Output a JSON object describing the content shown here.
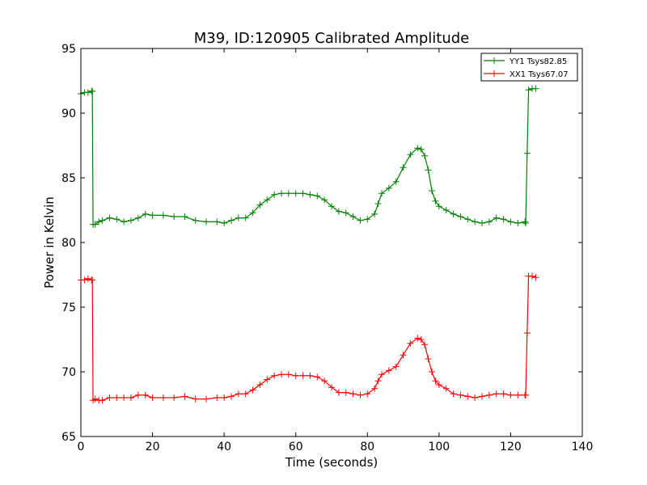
{
  "chart_data": {
    "type": "line",
    "title": "M39, ID:120905 Calibrated Amplitude",
    "xlabel": "Time (seconds)",
    "ylabel": "Power in Kelvin",
    "xlim": [
      0,
      140
    ],
    "ylim": [
      65,
      95
    ],
    "xticks": [
      0,
      20,
      40,
      60,
      80,
      100,
      120,
      140
    ],
    "yticks": [
      65,
      70,
      75,
      80,
      85,
      90,
      95
    ],
    "grid": false,
    "legend_position": "top-right",
    "marker": "+",
    "series": [
      {
        "name": "YY1 Tsys82.85",
        "color": "#008000",
        "points": [
          [
            0,
            91.5
          ],
          [
            1,
            91.6
          ],
          [
            2,
            91.6
          ],
          [
            3,
            91.7
          ],
          [
            3.2,
            91.7
          ],
          [
            3.4,
            81.4
          ],
          [
            4,
            81.4
          ],
          [
            5,
            81.6
          ],
          [
            6,
            81.7
          ],
          [
            8,
            81.9
          ],
          [
            10,
            81.8
          ],
          [
            12,
            81.6
          ],
          [
            14,
            81.7
          ],
          [
            16,
            81.9
          ],
          [
            18,
            82.2
          ],
          [
            20,
            82.1
          ],
          [
            23,
            82.1
          ],
          [
            26,
            82.0
          ],
          [
            29,
            82.0
          ],
          [
            32,
            81.7
          ],
          [
            35,
            81.6
          ],
          [
            38,
            81.6
          ],
          [
            40,
            81.5
          ],
          [
            42,
            81.7
          ],
          [
            44,
            81.9
          ],
          [
            46,
            81.9
          ],
          [
            48,
            82.3
          ],
          [
            50,
            82.9
          ],
          [
            52,
            83.3
          ],
          [
            54,
            83.7
          ],
          [
            56,
            83.8
          ],
          [
            58,
            83.8
          ],
          [
            60,
            83.8
          ],
          [
            62,
            83.8
          ],
          [
            64,
            83.7
          ],
          [
            66,
            83.6
          ],
          [
            68,
            83.3
          ],
          [
            70,
            82.8
          ],
          [
            72,
            82.4
          ],
          [
            74,
            82.3
          ],
          [
            76,
            82.0
          ],
          [
            78,
            81.7
          ],
          [
            80,
            81.8
          ],
          [
            82,
            82.2
          ],
          [
            83,
            83.0
          ],
          [
            84,
            83.8
          ],
          [
            86,
            84.2
          ],
          [
            88,
            84.7
          ],
          [
            90,
            85.8
          ],
          [
            92,
            86.8
          ],
          [
            94,
            87.3
          ],
          [
            95,
            87.2
          ],
          [
            96,
            86.7
          ],
          [
            97,
            85.6
          ],
          [
            98,
            84.0
          ],
          [
            99,
            83.2
          ],
          [
            100,
            82.8
          ],
          [
            102,
            82.5
          ],
          [
            104,
            82.2
          ],
          [
            106,
            82.0
          ],
          [
            108,
            81.8
          ],
          [
            110,
            81.6
          ],
          [
            112,
            81.5
          ],
          [
            114,
            81.6
          ],
          [
            116,
            81.9
          ],
          [
            118,
            81.8
          ],
          [
            120,
            81.6
          ],
          [
            122,
            81.5
          ],
          [
            124,
            81.6
          ],
          [
            124.2,
            81.5
          ],
          [
            124.6,
            86.9
          ],
          [
            125,
            91.8
          ],
          [
            126,
            91.9
          ],
          [
            127,
            91.9
          ]
        ]
      },
      {
        "name": "XX1 Tsys67.07",
        "color": "#ff0000",
        "points": [
          [
            0,
            77.1
          ],
          [
            1,
            77.1
          ],
          [
            2,
            77.2
          ],
          [
            3,
            77.1
          ],
          [
            3.2,
            77.1
          ],
          [
            3.4,
            67.8
          ],
          [
            4,
            67.9
          ],
          [
            5,
            67.8
          ],
          [
            6,
            67.8
          ],
          [
            8,
            68.0
          ],
          [
            10,
            68.0
          ],
          [
            12,
            68.0
          ],
          [
            14,
            68.0
          ],
          [
            16,
            68.2
          ],
          [
            18,
            68.2
          ],
          [
            20,
            68.0
          ],
          [
            23,
            68.0
          ],
          [
            26,
            68.0
          ],
          [
            29,
            68.1
          ],
          [
            32,
            67.9
          ],
          [
            35,
            67.9
          ],
          [
            38,
            68.0
          ],
          [
            40,
            68.0
          ],
          [
            42,
            68.1
          ],
          [
            44,
            68.3
          ],
          [
            46,
            68.3
          ],
          [
            48,
            68.6
          ],
          [
            50,
            69.0
          ],
          [
            52,
            69.4
          ],
          [
            54,
            69.7
          ],
          [
            56,
            69.8
          ],
          [
            58,
            69.8
          ],
          [
            60,
            69.7
          ],
          [
            62,
            69.7
          ],
          [
            64,
            69.7
          ],
          [
            66,
            69.6
          ],
          [
            68,
            69.3
          ],
          [
            70,
            68.8
          ],
          [
            72,
            68.4
          ],
          [
            74,
            68.4
          ],
          [
            76,
            68.3
          ],
          [
            78,
            68.2
          ],
          [
            80,
            68.3
          ],
          [
            82,
            68.7
          ],
          [
            83,
            69.3
          ],
          [
            84,
            69.8
          ],
          [
            86,
            70.1
          ],
          [
            88,
            70.4
          ],
          [
            90,
            71.3
          ],
          [
            92,
            72.2
          ],
          [
            94,
            72.6
          ],
          [
            95,
            72.5
          ],
          [
            96,
            72.1
          ],
          [
            97,
            71.0
          ],
          [
            98,
            70.0
          ],
          [
            99,
            69.3
          ],
          [
            100,
            69.0
          ],
          [
            102,
            68.7
          ],
          [
            104,
            68.3
          ],
          [
            106,
            68.2
          ],
          [
            108,
            68.1
          ],
          [
            110,
            68.0
          ],
          [
            112,
            68.1
          ],
          [
            114,
            68.2
          ],
          [
            116,
            68.3
          ],
          [
            118,
            68.3
          ],
          [
            120,
            68.2
          ],
          [
            122,
            68.2
          ],
          [
            124,
            68.2
          ],
          [
            124.2,
            68.2
          ],
          [
            124.6,
            73.0
          ],
          [
            125,
            77.4
          ],
          [
            126,
            77.4
          ],
          [
            127,
            77.3
          ]
        ]
      }
    ]
  }
}
